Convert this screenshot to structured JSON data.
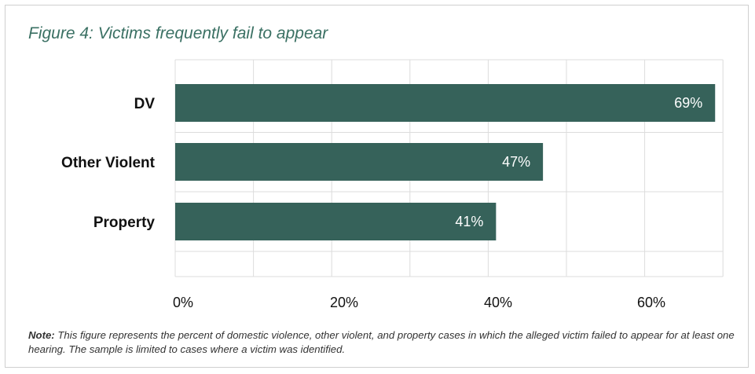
{
  "title": "Figure 4: Victims frequently fail to appear",
  "note": {
    "label": "Note:",
    "text": "This figure represents the percent of domestic violence, other violent, and property cases in which the alleged victim failed to appear for at least one hearing. The sample is limited to cases where a victim was identified."
  },
  "colors": {
    "bar": "#36625a",
    "bar_label": "#ffffff",
    "title": "#3a7063",
    "grid": "#dcdcdc"
  },
  "chart_data": {
    "type": "bar",
    "orientation": "horizontal",
    "title": "Figure 4: Victims frequently fail to appear",
    "categories": [
      "DV",
      "Other Violent",
      "Property"
    ],
    "values": [
      69,
      47,
      41
    ],
    "value_labels": [
      "69%",
      "47%",
      "41%"
    ],
    "xlim": [
      0,
      70
    ],
    "xticks": [
      0,
      20,
      40,
      60
    ],
    "xtick_labels": [
      "0%",
      "20%",
      "40%",
      "60%"
    ],
    "grid_step": 10,
    "grid": true,
    "legend": "none"
  }
}
